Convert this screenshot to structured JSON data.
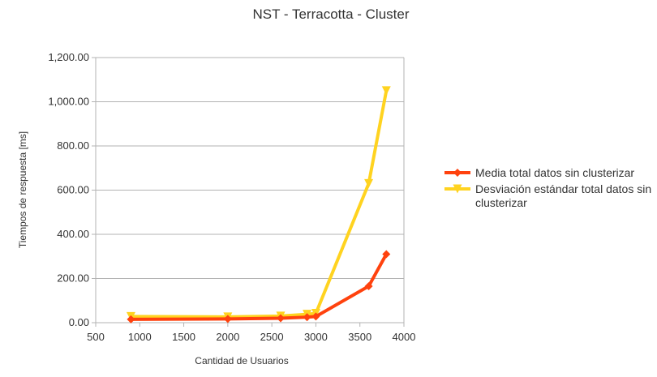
{
  "chart_data": {
    "type": "line",
    "title": "NST - Terracotta - Cluster",
    "xlabel": "Cantidad de Usuarios",
    "ylabel": "Tiempos de respuesta [ms]",
    "xlim": [
      500,
      4000
    ],
    "ylim": [
      0,
      1200
    ],
    "x_ticks": [
      "500",
      "1000",
      "1500",
      "2000",
      "2500",
      "3000",
      "3500",
      "4000"
    ],
    "y_ticks": [
      "0.00",
      "200.00",
      "400.00",
      "600.00",
      "800.00",
      "1,000.00",
      "1,200.00"
    ],
    "grid": "horizontal",
    "legend_position": "right",
    "series": [
      {
        "name": "Media total datos sin clusterizar",
        "color": "#ff420e",
        "marker": "diamond",
        "x": [
          900,
          2000,
          2600,
          2900,
          3000,
          3600,
          3800
        ],
        "y": [
          15,
          17,
          20,
          25,
          28,
          165,
          310
        ]
      },
      {
        "name": "Desviación estándar total datos sin clusterizar",
        "name_lines": [
          "Desviación estándar total datos sin",
          "clusterizar"
        ],
        "color": "#ffd320",
        "marker": "triangle-down",
        "x": [
          900,
          2000,
          2600,
          2900,
          3000,
          3600,
          3800
        ],
        "y": [
          28,
          26,
          30,
          38,
          42,
          630,
          1050
        ]
      }
    ]
  }
}
